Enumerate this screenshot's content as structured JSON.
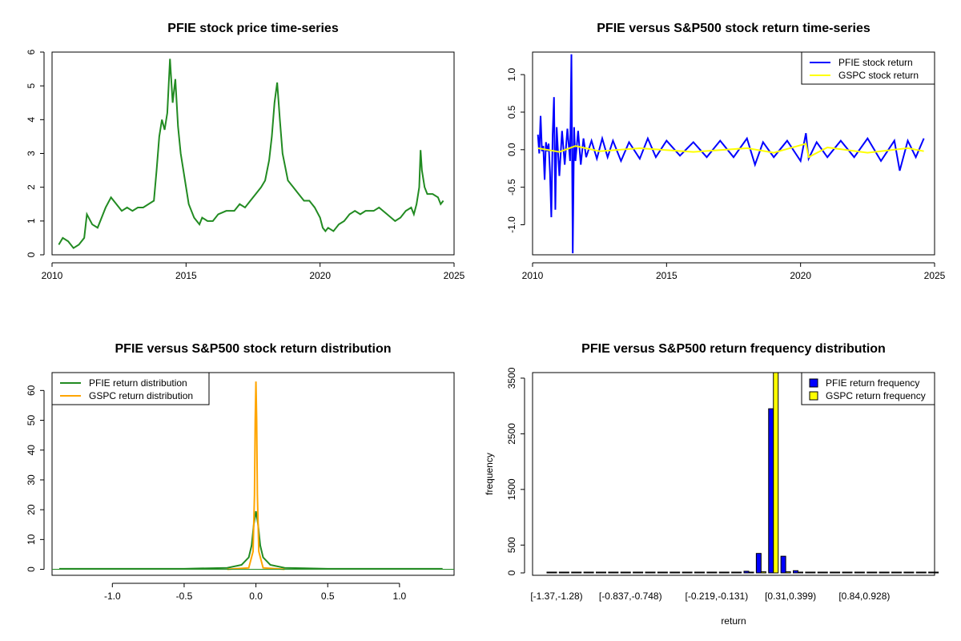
{
  "charts": [
    {
      "type": "line",
      "title": "PFIE stock price time-series",
      "xlim": [
        2010,
        2025
      ],
      "ylim": [
        0,
        6
      ],
      "x_ticks": [
        "2010",
        "2015",
        "2020",
        "2025"
      ],
      "y_ticks": [
        "0",
        "1",
        "2",
        "3",
        "4",
        "5",
        "6"
      ],
      "series": [
        {
          "color": "#228B22",
          "x": [
            2010.25,
            2010.4,
            2010.6,
            2010.8,
            2011.0,
            2011.2,
            2011.3,
            2011.5,
            2011.7,
            2011.9,
            2012.0,
            2012.2,
            2012.4,
            2012.6,
            2012.8,
            2013.0,
            2013.2,
            2013.4,
            2013.6,
            2013.8,
            2013.9,
            2014.0,
            2014.1,
            2014.2,
            2014.3,
            2014.35,
            2014.4,
            2014.5,
            2014.6,
            2014.7,
            2014.8,
            2014.9,
            2015.0,
            2015.1,
            2015.2,
            2015.3,
            2015.4,
            2015.5,
            2015.6,
            2015.8,
            2016.0,
            2016.2,
            2016.5,
            2016.8,
            2017.0,
            2017.2,
            2017.4,
            2017.6,
            2017.8,
            2017.95,
            2018.1,
            2018.2,
            2018.3,
            2018.4,
            2018.5,
            2018.6,
            2018.8,
            2019.0,
            2019.2,
            2019.4,
            2019.6,
            2019.8,
            2020.0,
            2020.1,
            2020.2,
            2020.3,
            2020.5,
            2020.7,
            2020.9,
            2021.1,
            2021.3,
            2021.5,
            2021.7,
            2022.0,
            2022.2,
            2022.5,
            2022.8,
            2023.0,
            2023.2,
            2023.4,
            2023.5,
            2023.6,
            2023.7,
            2023.75,
            2023.8,
            2023.9,
            2024.0,
            2024.2,
            2024.4,
            2024.5,
            2024.6
          ],
          "y": [
            0.3,
            0.5,
            0.4,
            0.2,
            0.3,
            0.5,
            1.2,
            0.9,
            0.8,
            1.2,
            1.4,
            1.7,
            1.5,
            1.3,
            1.4,
            1.3,
            1.4,
            1.4,
            1.5,
            1.6,
            2.5,
            3.5,
            4.0,
            3.7,
            4.2,
            5.0,
            5.8,
            4.5,
            5.2,
            3.8,
            3.0,
            2.5,
            2.0,
            1.5,
            1.3,
            1.1,
            1.0,
            0.9,
            1.1,
            1.0,
            1.0,
            1.2,
            1.3,
            1.3,
            1.5,
            1.4,
            1.6,
            1.8,
            2.0,
            2.2,
            2.8,
            3.5,
            4.5,
            5.1,
            4.0,
            3.0,
            2.2,
            2.0,
            1.8,
            1.6,
            1.6,
            1.4,
            1.1,
            0.8,
            0.7,
            0.8,
            0.7,
            0.9,
            1.0,
            1.2,
            1.3,
            1.2,
            1.3,
            1.3,
            1.4,
            1.2,
            1.0,
            1.1,
            1.3,
            1.4,
            1.2,
            1.5,
            2.0,
            3.1,
            2.5,
            2.0,
            1.8,
            1.8,
            1.7,
            1.5,
            1.6
          ]
        }
      ]
    },
    {
      "type": "line",
      "title": "PFIE versus S&P500 stock return time-series",
      "xlim": [
        2010,
        2025
      ],
      "ylim": [
        -1.4,
        1.3
      ],
      "x_ticks": [
        "2010",
        "2015",
        "2020",
        "2025"
      ],
      "y_ticks": [
        "-1.0",
        "-0.5",
        "0.0",
        "0.5",
        "1.0"
      ],
      "legend": {
        "position": "top-right",
        "entries": [
          "PFIE stock return",
          "GSPC stock return"
        ]
      },
      "series": [
        {
          "name": "PFIE stock return",
          "color": "#0000FF",
          "x": [
            2010.2,
            2010.25,
            2010.3,
            2010.35,
            2010.4,
            2010.45,
            2010.5,
            2010.55,
            2010.6,
            2010.65,
            2010.7,
            2010.75,
            2010.8,
            2010.85,
            2010.9,
            2011.0,
            2011.1,
            2011.2,
            2011.3,
            2011.4,
            2011.45,
            2011.5,
            2011.55,
            2011.6,
            2011.7,
            2011.8,
            2011.9,
            2012.0,
            2012.2,
            2012.4,
            2012.6,
            2012.8,
            2013.0,
            2013.3,
            2013.6,
            2014.0,
            2014.3,
            2014.6,
            2015.0,
            2015.5,
            2016.0,
            2016.5,
            2017.0,
            2017.5,
            2018.0,
            2018.3,
            2018.6,
            2019.0,
            2019.5,
            2020.0,
            2020.2,
            2020.3,
            2020.6,
            2021.0,
            2021.5,
            2022.0,
            2022.5,
            2023.0,
            2023.5,
            2023.7,
            2024.0,
            2024.3,
            2024.6
          ],
          "y": [
            0.2,
            -0.05,
            0.45,
            -0.02,
            0.05,
            -0.4,
            0.1,
            -0.02,
            0.08,
            -0.3,
            -0.9,
            0.2,
            0.7,
            -0.8,
            0.3,
            -0.35,
            0.25,
            -0.2,
            0.28,
            -0.15,
            1.27,
            -1.38,
            0.3,
            -0.15,
            0.25,
            -0.2,
            0.15,
            -0.1,
            0.12,
            -0.12,
            0.15,
            -0.1,
            0.12,
            -0.15,
            0.1,
            -0.12,
            0.15,
            -0.1,
            0.12,
            -0.08,
            0.1,
            -0.1,
            0.12,
            -0.1,
            0.15,
            -0.2,
            0.1,
            -0.1,
            0.12,
            -0.15,
            0.22,
            -0.12,
            0.1,
            -0.1,
            0.12,
            -0.1,
            0.15,
            -0.15,
            0.12,
            -0.28,
            0.12,
            -0.1,
            0.15
          ]
        },
        {
          "name": "GSPC stock return",
          "color": "#FFFF00",
          "x": [
            2010.2,
            2011.0,
            2011.6,
            2012.5,
            2014.0,
            2016.0,
            2018.0,
            2019.0,
            2020.2,
            2020.3,
            2021.0,
            2022.5,
            2024.0,
            2024.6
          ],
          "y": [
            0.02,
            -0.03,
            0.05,
            -0.02,
            0.02,
            -0.03,
            0.02,
            -0.04,
            0.08,
            -0.1,
            0.03,
            -0.04,
            0.02,
            -0.02
          ]
        }
      ]
    },
    {
      "type": "line",
      "title": "PFIE versus S&P500 stock return distribution",
      "xlim": [
        -1.42,
        1.38
      ],
      "ylim": [
        -2,
        66
      ],
      "x_ticks": [
        "-1.0",
        "-0.5",
        "0.0",
        "0.5",
        "1.0"
      ],
      "y_ticks": [
        "0",
        "10",
        "20",
        "30",
        "40",
        "50",
        "60"
      ],
      "legend": {
        "position": "top-left",
        "entries": [
          "PFIE return distribution",
          "GSPC return distribution"
        ]
      },
      "series": [
        {
          "name": "PFIE return distribution",
          "color": "#228B22",
          "x": [
            -1.37,
            -0.5,
            -0.2,
            -0.1,
            -0.05,
            -0.03,
            -0.015,
            0.0,
            0.015,
            0.03,
            0.05,
            0.1,
            0.2,
            0.5,
            1.3
          ],
          "y": [
            0.2,
            0.2,
            0.5,
            1.5,
            4.0,
            8.0,
            15.0,
            19.5,
            15.0,
            8.0,
            4.0,
            1.5,
            0.5,
            0.2,
            0.2
          ]
        },
        {
          "name": "GSPC return distribution",
          "color": "#FFA500",
          "x": [
            -0.2,
            -0.05,
            -0.02,
            -0.01,
            -0.005,
            0.0,
            0.005,
            0.01,
            0.02,
            0.05,
            0.2
          ],
          "y": [
            0.0,
            0.5,
            6.0,
            25.0,
            50.0,
            63.0,
            50.0,
            25.0,
            6.0,
            0.5,
            0.0
          ]
        }
      ]
    },
    {
      "type": "bar",
      "title": "PFIE versus S&P500 return frequency distribution",
      "xlabel": "return",
      "ylabel": "frequency",
      "ylim": [
        0,
        3600
      ],
      "y_ticks": [
        "0",
        "500",
        "1500",
        "2500",
        "3500"
      ],
      "x_labels": [
        "[-1.37,-1.28)",
        "[-0.837,-0.748)",
        "[-0.219,-0.131)",
        "[0.31,0.399)",
        "[0.84,0.928)"
      ],
      "legend": {
        "position": "top-right",
        "entries": [
          "PFIE return frequency",
          "GSPC return frequency"
        ]
      },
      "series": [
        {
          "name": "PFIE return frequency",
          "color": "#0000FF",
          "values": [
            1,
            0,
            0,
            0,
            0,
            0,
            1,
            0,
            0,
            0,
            0,
            0,
            0,
            0,
            2,
            5,
            30,
            350,
            2950,
            300,
            40,
            10,
            3,
            1,
            0,
            0,
            0,
            0,
            0,
            0,
            0,
            0
          ]
        },
        {
          "name": "GSPC return frequency",
          "color": "#FFFF00",
          "values": [
            0,
            0,
            0,
            0,
            0,
            0,
            0,
            0,
            0,
            0,
            0,
            0,
            0,
            0,
            0,
            0,
            2,
            20,
            3600,
            20,
            2,
            0,
            0,
            0,
            0,
            0,
            0,
            0,
            0,
            0,
            0,
            0
          ]
        }
      ]
    }
  ]
}
